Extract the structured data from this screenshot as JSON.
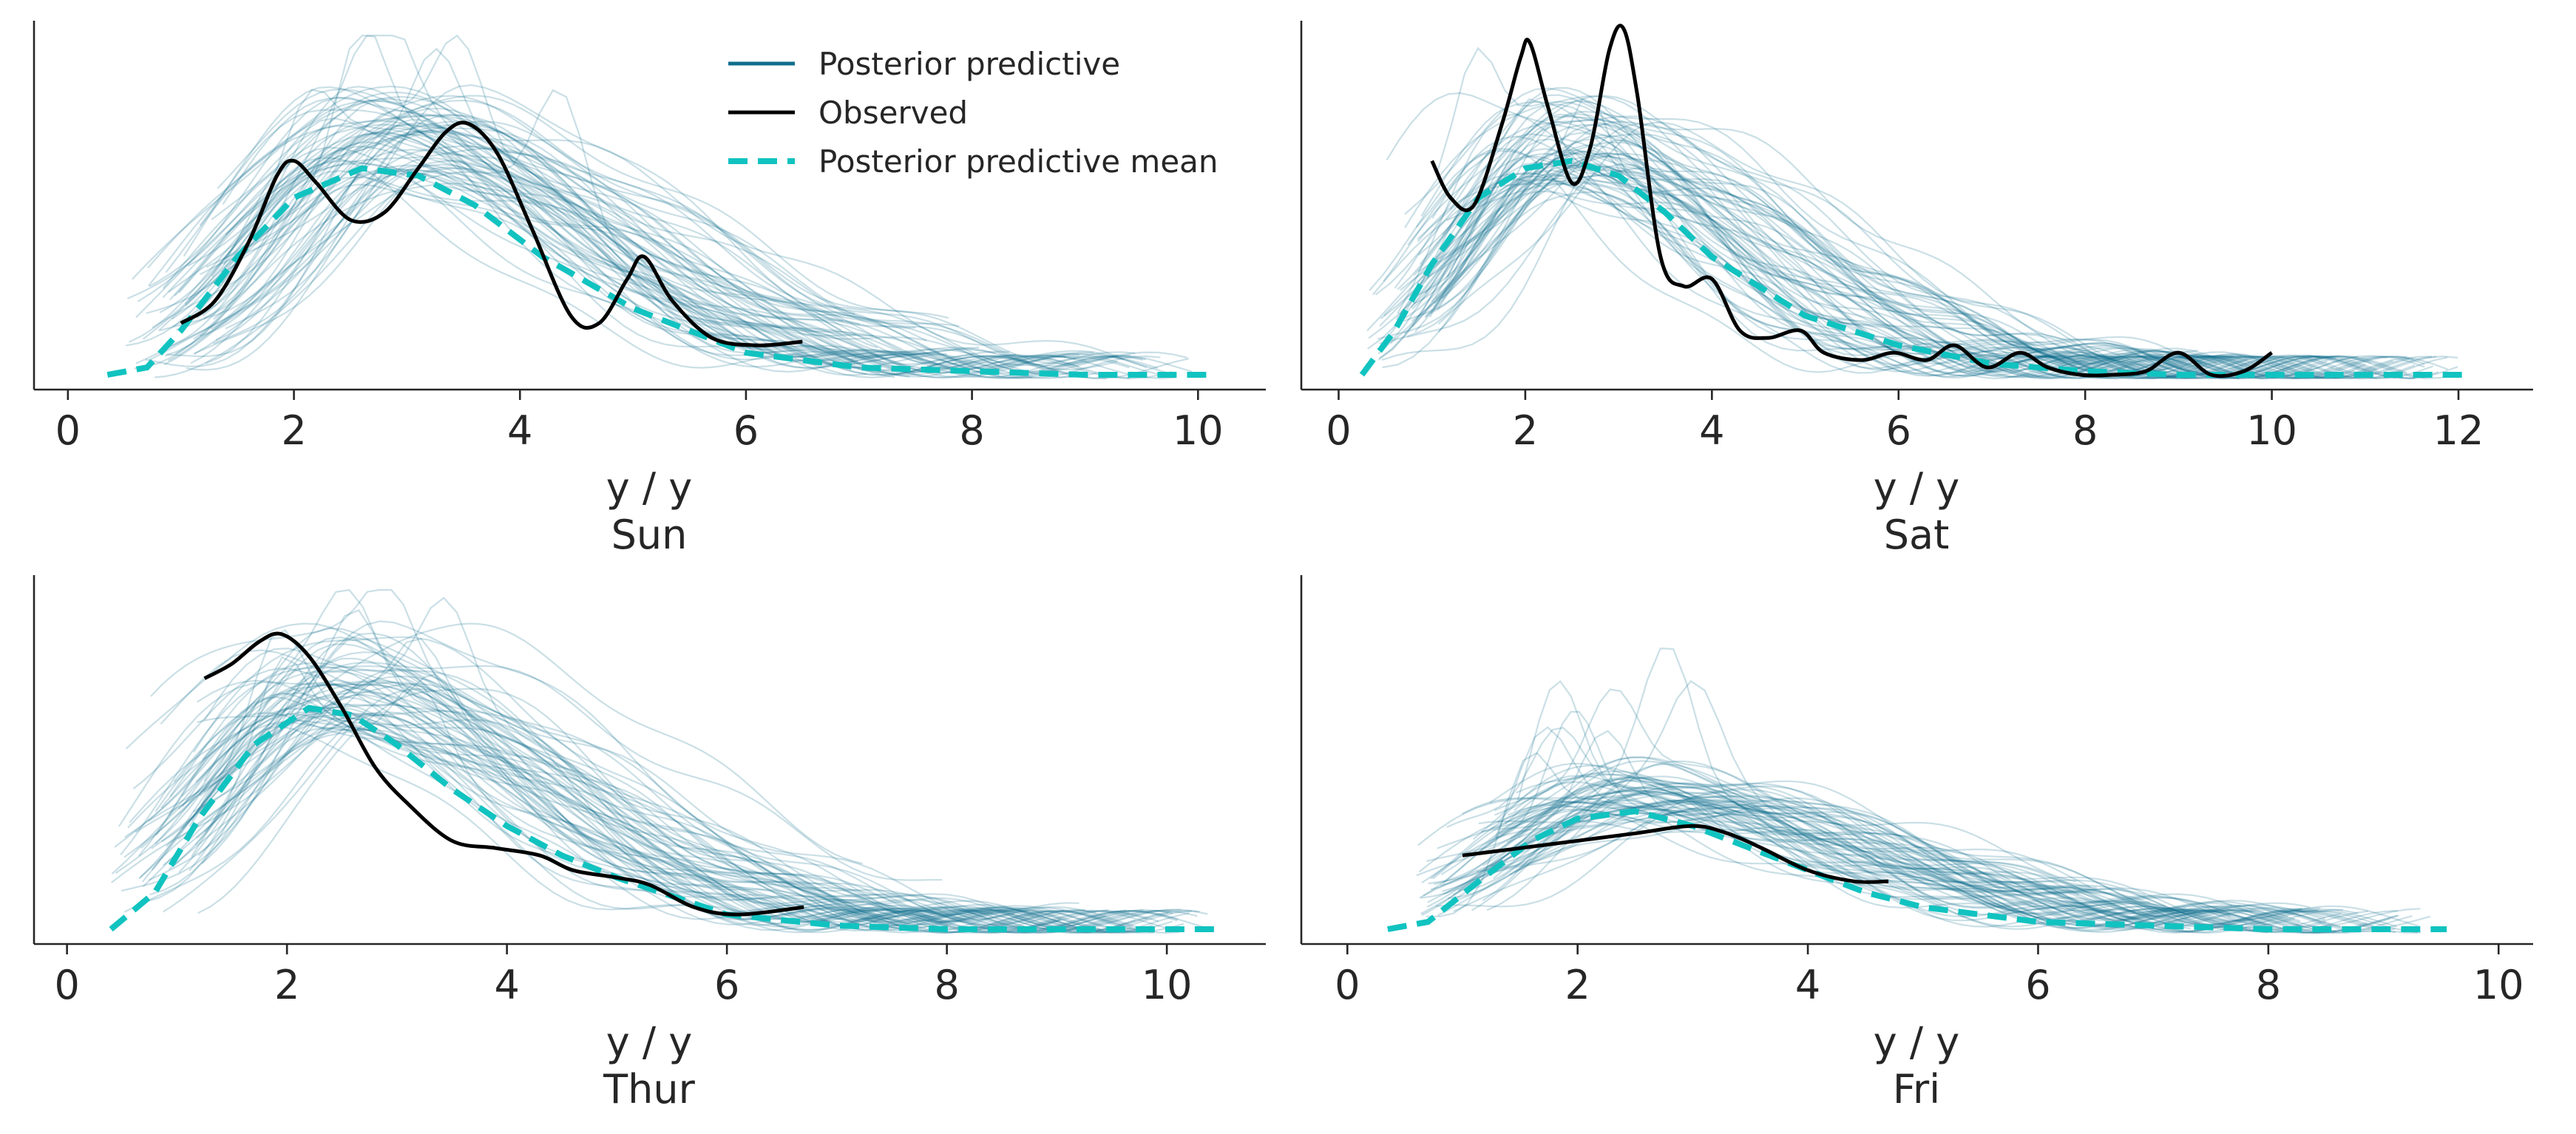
{
  "chart_data": [
    {
      "type": "line",
      "panel": "Sun",
      "xlabel": "y / y",
      "title": "Sun",
      "xlim": [
        -0.3,
        10.6
      ],
      "xticks": [
        0,
        2,
        4,
        6,
        8,
        10
      ],
      "ymax": 0.5,
      "legend": {
        "placement": "top-center",
        "entries": [
          "Posterior predictive",
          "Observed",
          "Posterior predictive mean"
        ]
      },
      "observed": {
        "name": "Observed",
        "x": [
          1.0,
          1.3,
          1.6,
          1.85,
          2.0,
          2.2,
          2.5,
          2.8,
          3.1,
          3.35,
          3.55,
          3.8,
          4.1,
          4.45,
          4.7,
          4.95,
          5.1,
          5.35,
          5.7,
          6.1,
          6.5
        ],
        "y": [
          0.09,
          0.12,
          0.2,
          0.29,
          0.31,
          0.28,
          0.23,
          0.24,
          0.3,
          0.35,
          0.36,
          0.32,
          0.22,
          0.1,
          0.09,
          0.15,
          0.18,
          0.12,
          0.07,
          0.06,
          0.065
        ]
      },
      "mean": {
        "name": "Posterior predictive mean",
        "x": [
          0.35,
          0.7,
          1.0,
          1.5,
          2.0,
          2.6,
          3.1,
          3.6,
          4.2,
          5.0,
          6.0,
          7.0,
          8.0,
          9.0,
          10.15
        ],
        "y": [
          0.02,
          0.03,
          0.08,
          0.18,
          0.26,
          0.3,
          0.29,
          0.25,
          0.18,
          0.11,
          0.05,
          0.03,
          0.025,
          0.02,
          0.02
        ],
        "color": "#11c3c0"
      },
      "ppc": {
        "name": "Posterior predictive",
        "x_start": 0.5,
        "x_end": 10.0,
        "peak_x": 2.8,
        "peak_y": 0.3,
        "color": "#0f6e8c"
      }
    },
    {
      "type": "line",
      "panel": "Sat",
      "xlabel": "y / y",
      "title": "Sat",
      "xlim": [
        -0.4,
        12.8
      ],
      "xticks": [
        0,
        2,
        4,
        6,
        8,
        10,
        12
      ],
      "ymax": 0.5,
      "observed": {
        "name": "Observed",
        "x": [
          1.0,
          1.2,
          1.45,
          1.75,
          1.95,
          2.05,
          2.25,
          2.5,
          2.7,
          2.9,
          3.05,
          3.2,
          3.45,
          3.7,
          4.0,
          4.3,
          4.6,
          4.95,
          5.2,
          5.6,
          5.95,
          6.3,
          6.6,
          6.95,
          7.3,
          7.6,
          7.95,
          8.3,
          8.65,
          9.0,
          9.35,
          9.7,
          10.0
        ],
        "y": [
          0.31,
          0.26,
          0.25,
          0.36,
          0.45,
          0.47,
          0.38,
          0.28,
          0.33,
          0.46,
          0.49,
          0.4,
          0.18,
          0.14,
          0.15,
          0.08,
          0.07,
          0.08,
          0.05,
          0.04,
          0.05,
          0.04,
          0.06,
          0.03,
          0.05,
          0.03,
          0.02,
          0.02,
          0.025,
          0.05,
          0.02,
          0.025,
          0.05
        ]
      },
      "mean": {
        "name": "Posterior predictive mean",
        "x": [
          0.25,
          0.6,
          1.0,
          1.5,
          2.0,
          2.5,
          3.0,
          3.5,
          4.0,
          5.0,
          6.0,
          7.0,
          8.0,
          9.0,
          10.0,
          11.0,
          12.1
        ],
        "y": [
          0.02,
          0.08,
          0.17,
          0.26,
          0.3,
          0.31,
          0.29,
          0.24,
          0.18,
          0.1,
          0.06,
          0.035,
          0.025,
          0.02,
          0.02,
          0.02,
          0.02
        ],
        "color": "#11c3c0"
      },
      "ppc": {
        "name": "Posterior predictive",
        "x_start": 0.3,
        "x_end": 12.0,
        "peak_x": 2.4,
        "peak_y": 0.3,
        "color": "#0f6e8c"
      }
    },
    {
      "type": "line",
      "panel": "Thur",
      "xlabel": "y / y",
      "title": "Thur",
      "xlim": [
        -0.3,
        10.9
      ],
      "xticks": [
        0,
        2,
        4,
        6,
        8,
        10
      ],
      "ymax": 0.5,
      "observed": {
        "name": "Observed",
        "x": [
          1.25,
          1.5,
          1.75,
          1.95,
          2.2,
          2.5,
          2.8,
          3.1,
          3.5,
          3.9,
          4.3,
          4.6,
          5.0,
          5.3,
          5.7,
          6.1,
          6.7
        ],
        "y": [
          0.36,
          0.38,
          0.41,
          0.42,
          0.39,
          0.32,
          0.24,
          0.19,
          0.14,
          0.13,
          0.12,
          0.1,
          0.09,
          0.08,
          0.05,
          0.04,
          0.05
        ]
      },
      "mean": {
        "name": "Posterior predictive mean",
        "x": [
          0.4,
          0.8,
          1.2,
          1.7,
          2.2,
          2.6,
          3.0,
          3.5,
          4.0,
          4.5,
          5.0,
          6.0,
          7.0,
          8.0,
          9.0,
          10.45
        ],
        "y": [
          0.02,
          0.07,
          0.17,
          0.27,
          0.32,
          0.31,
          0.27,
          0.21,
          0.16,
          0.12,
          0.09,
          0.04,
          0.025,
          0.02,
          0.02,
          0.02
        ],
        "color": "#11c3c0"
      },
      "ppc": {
        "name": "Posterior predictive",
        "x_start": 0.4,
        "x_end": 10.4,
        "peak_x": 2.4,
        "peak_y": 0.32,
        "color": "#0f6e8c"
      }
    },
    {
      "type": "line",
      "panel": "Fri",
      "xlabel": "y / y",
      "title": "Fri",
      "xlim": [
        -0.4,
        10.3
      ],
      "xticks": [
        0,
        2,
        4,
        6,
        8,
        10
      ],
      "ymax": 0.5,
      "observed": {
        "name": "Observed",
        "x": [
          1.0,
          1.5,
          2.0,
          2.5,
          3.0,
          3.3,
          3.6,
          4.0,
          4.4,
          4.7
        ],
        "y": [
          0.12,
          0.13,
          0.14,
          0.15,
          0.16,
          0.15,
          0.13,
          0.1,
          0.085,
          0.085
        ]
      },
      "mean": {
        "name": "Posterior predictive mean",
        "x": [
          0.35,
          0.7,
          1.1,
          1.6,
          2.0,
          2.5,
          3.0,
          3.5,
          4.0,
          4.5,
          5.0,
          6.0,
          7.0,
          8.0,
          9.0,
          9.55
        ],
        "y": [
          0.02,
          0.03,
          0.08,
          0.14,
          0.17,
          0.18,
          0.16,
          0.13,
          0.1,
          0.07,
          0.05,
          0.03,
          0.025,
          0.02,
          0.02,
          0.02
        ],
        "color": "#11c3c0"
      },
      "ppc": {
        "name": "Posterior predictive",
        "x_start": 0.6,
        "x_end": 9.5,
        "peak_x": 2.5,
        "peak_y": 0.17,
        "color": "#0f6e8c"
      }
    }
  ]
}
